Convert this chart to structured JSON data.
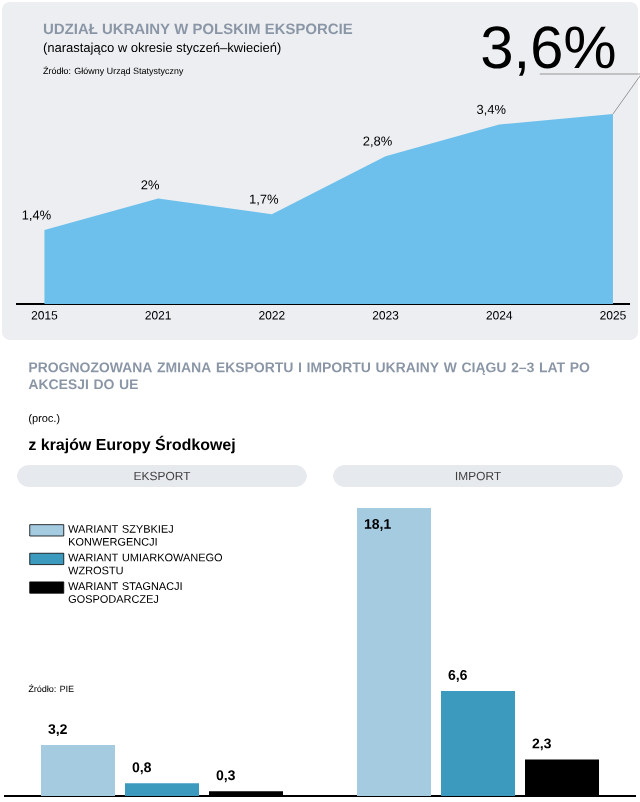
{
  "chart_data": [
    {
      "type": "area",
      "title": "UDZIAŁ UKRAINY W POLSKIM EKSPORCIE",
      "subtitle": "(narastająco w okresie styczeń–kwiecień)",
      "annotations": [
        "Źródło: Główny Urząd Statystyczny"
      ],
      "categories": [
        "2015",
        "2021",
        "2022",
        "2023",
        "2024",
        "2025"
      ],
      "values": [
        1.4,
        2,
        1.7,
        2.8,
        3.4,
        3.6
      ],
      "value_labels": [
        "1,4%",
        "2%",
        "1,7%",
        "2,8%",
        "3,4%",
        "3,6%"
      ],
      "color": "#6ec0ec"
    },
    {
      "type": "bar",
      "title": "PROGNOZOWANA ZMIANA EKSPORTU I IMPORTU UKRAINY W CIĄGU 2–3 LAT PO AKCESJI DO UE",
      "subtitle": "z krajów Europy Środkowej",
      "annotations": [
        "(proc.)",
        "Źródło: PIE"
      ],
      "categories": [
        "EKSPORT",
        "IMPORT"
      ],
      "legend": "top left",
      "series": [
        {
          "name": "WARIANT SZYBKIEJ KONWERGENCJI",
          "color": "#a4cbe0",
          "values": [
            3.2,
            18.1
          ],
          "value_labels": [
            "3,2",
            "18,1"
          ]
        },
        {
          "name": "WARIANT UMIARKOWANEGO WZROSTU",
          "color": "#3d9abf",
          "values": [
            0.8,
            6.6
          ],
          "value_labels": [
            "0,8",
            "6,6"
          ]
        },
        {
          "name": "WARIANT STAGNACJI GOSPODARCZEJ",
          "color": "#000000",
          "values": [
            0.3,
            2.3
          ],
          "value_labels": [
            "0,3",
            "2,3"
          ]
        }
      ]
    }
  ]
}
